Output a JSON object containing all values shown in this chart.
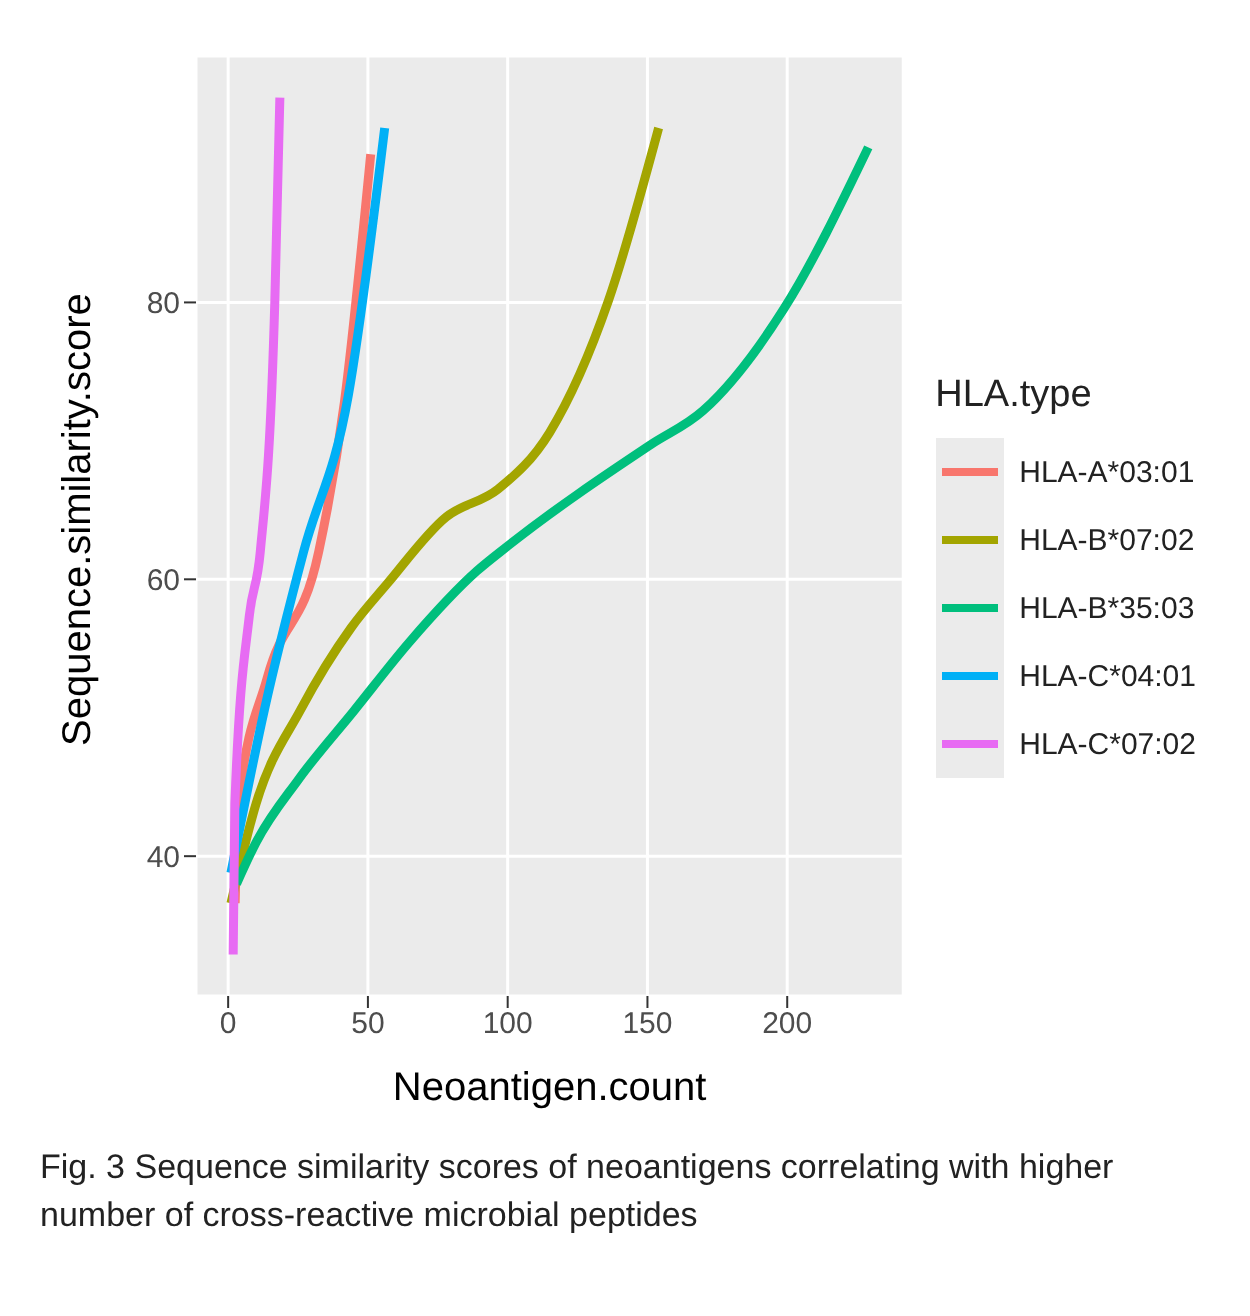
{
  "chart_data": {
    "type": "line",
    "xlabel": "Neoantigen.count",
    "ylabel": "Sequence.similarity.score",
    "legend_title": "HLA.type",
    "series": [
      {
        "name": "HLA-A*03:01",
        "color": "#f8766d",
        "x": [
          2.5,
          3.7,
          14,
          32.4,
          41.6,
          51
        ],
        "values": [
          36.6,
          43.8,
          52.9,
          62,
          72.8,
          90.7
        ]
      },
      {
        "name": "HLA-B*07:02",
        "color": "#a3a500",
        "x": [
          1,
          10,
          26,
          44,
          57,
          78,
          96.5,
          115,
          136,
          154
        ],
        "values": [
          36.6,
          43.8,
          50.6,
          56.5,
          59.7,
          64.5,
          66.5,
          70.6,
          80.1,
          92.6
        ]
      },
      {
        "name": "HLA-B*35:03",
        "color": "#00bf7d",
        "x": [
          3,
          10,
          25,
          45,
          65,
          89,
          100,
          151,
          170,
          199,
          229
        ],
        "values": [
          38,
          41,
          45.5,
          50.5,
          55.5,
          60.6,
          62.4,
          69.7,
          72.2,
          79.6,
          91.2
        ]
      },
      {
        "name": "HLA-C*04:01",
        "color": "#00b0f6",
        "x": [
          1,
          13,
          27,
          43,
          56
        ],
        "values": [
          38.8,
          50.6,
          62,
          73.3,
          92.6
        ]
      },
      {
        "name": "HLA-C*07:02",
        "color": "#e76bf3",
        "x": [
          1.8,
          2.4,
          7.6,
          11.5,
          16.7,
          18.5
        ],
        "values": [
          32.9,
          43.8,
          57.4,
          62,
          80.1,
          94.8
        ]
      }
    ],
    "xlim": [
      -11.5,
      241.5
    ],
    "xticks": [
      0,
      50,
      100,
      150,
      200
    ],
    "ylim": [
      29.9,
      97.8
    ],
    "yticks": [
      40,
      60,
      80
    ],
    "grid": true,
    "legend": "right",
    "marker": "none",
    "line_style": "solid",
    "annotations": [
      "Fig. 3 Sequence similarity scores of neoantigens correlating with higher number of cross-reactive microbial peptides"
    ]
  }
}
